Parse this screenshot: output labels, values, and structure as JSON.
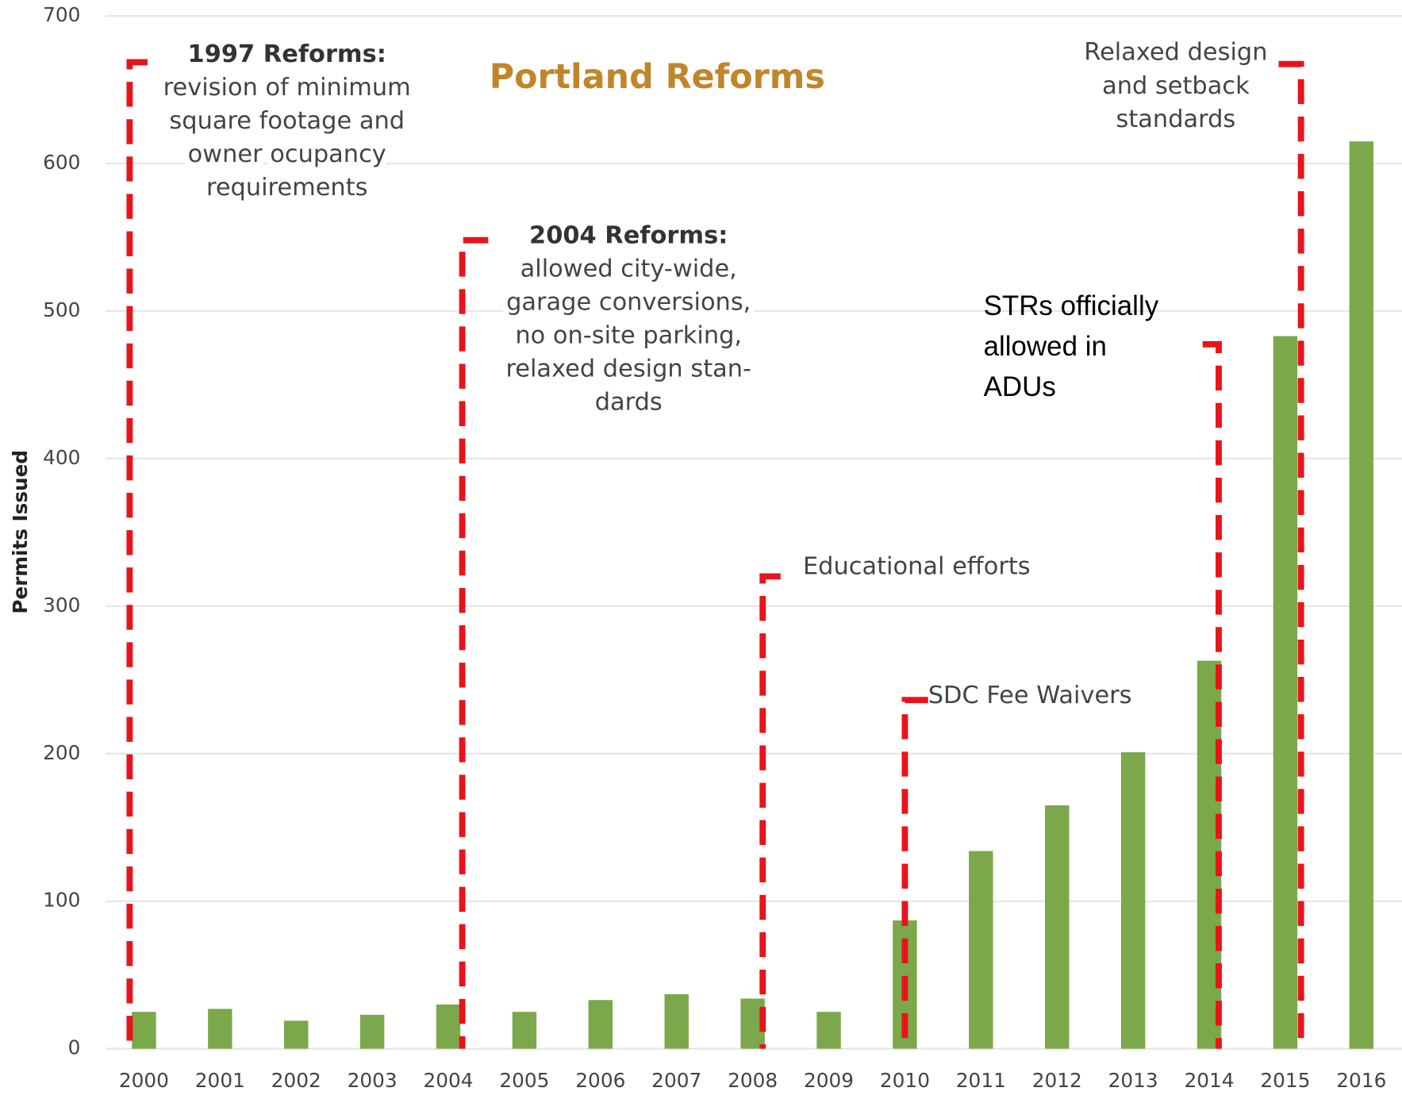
{
  "chart_data": {
    "type": "bar",
    "title": "Portland Reforms",
    "y_label": "Permits Issued",
    "categories": [
      "2000",
      "2001",
      "2002",
      "2003",
      "2004",
      "2005",
      "2006",
      "2007",
      "2008",
      "2009",
      "2010",
      "2011",
      "2012",
      "2013",
      "2014",
      "2015",
      "2016"
    ],
    "values": [
      25,
      27,
      19,
      23,
      30,
      25,
      33,
      37,
      34,
      25,
      87,
      134,
      165,
      201,
      263,
      483,
      615
    ],
    "color": "#7ba84a",
    "ylim": [
      0,
      700
    ],
    "yticks": [
      0,
      100,
      200,
      300,
      400,
      500,
      600,
      700
    ],
    "grid": true,
    "annotations": [
      {
        "title": "1997 Reforms:",
        "lines": [
          "revision of minimum",
          "square footage and",
          "owner ocupancy",
          "requirements"
        ]
      },
      {
        "title": "2004 Reforms:",
        "lines": [
          "allowed city-wide,",
          "garage conversions,",
          "no on-site parking,",
          "relaxed design stan-",
          "dards"
        ]
      },
      {
        "lines": [
          "Educational efforts"
        ]
      },
      {
        "lines": [
          "SDC Fee Waivers"
        ]
      },
      {
        "lines": [
          "STRs officially",
          "allowed in",
          "ADUs"
        ]
      },
      {
        "lines": [
          "Relaxed design",
          "and setback",
          "standards"
        ]
      }
    ]
  }
}
